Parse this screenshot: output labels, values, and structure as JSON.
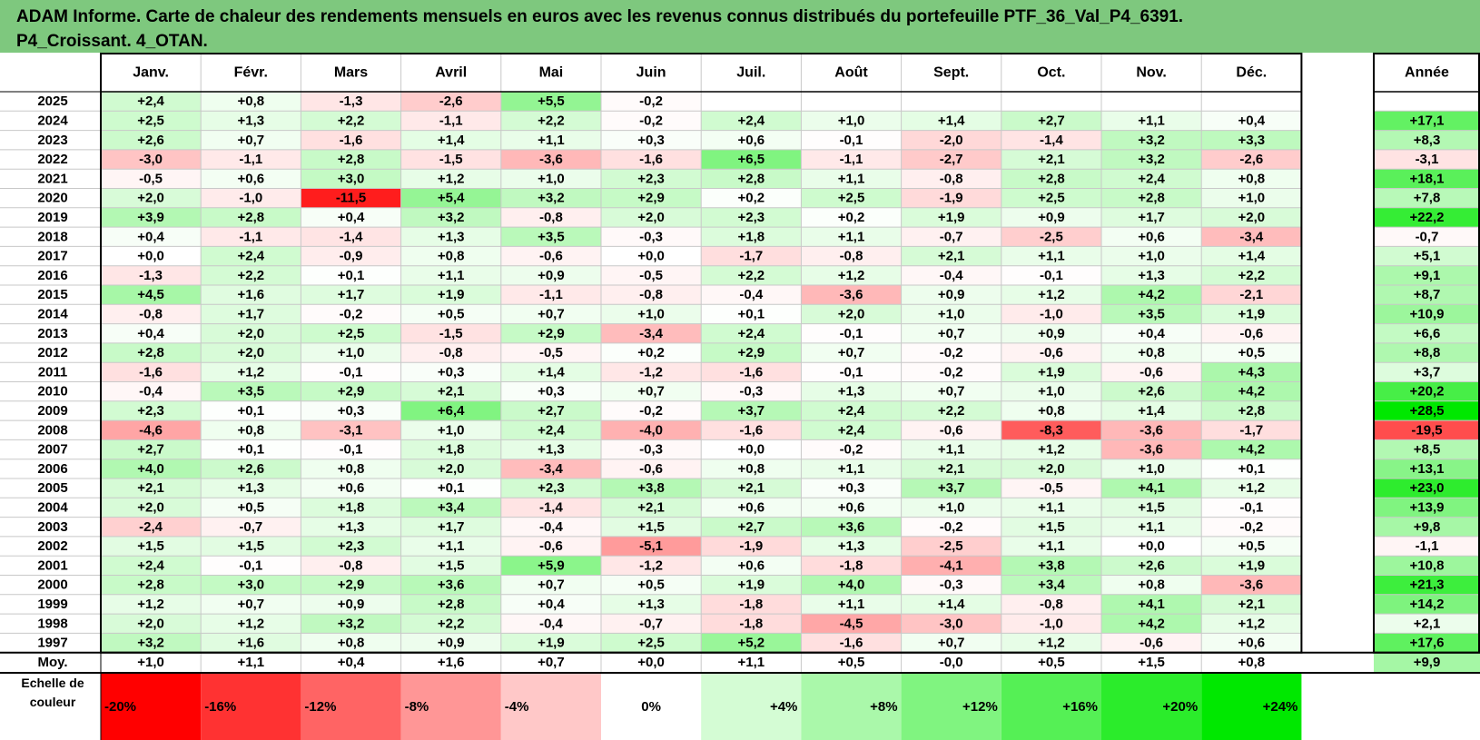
{
  "title_line1": "ADAM Informe. Carte de chaleur des rendements mensuels en euros avec les revenus connus distribués du portefeuille PTF_36_Val_P4_6391.",
  "title_line2": "P4_Croissant. 4_OTAN.",
  "chart_data": {
    "type": "heatmap",
    "columns": [
      "Janv.",
      "Févr.",
      "Mars",
      "Avril",
      "Mai",
      "Juin",
      "Juil.",
      "Août",
      "Sept.",
      "Oct.",
      "Nov.",
      "Déc."
    ],
    "year_column": "Année",
    "rows": [
      {
        "label": "2025",
        "months": [
          "+2,4",
          "+0,8",
          "-1,3",
          "-2,6",
          "+5,5",
          "-0,2",
          "",
          "",
          "",
          "",
          "",
          ""
        ],
        "year": ""
      },
      {
        "label": "2024",
        "months": [
          "+2,5",
          "+1,3",
          "+2,2",
          "-1,1",
          "+2,2",
          "-0,2",
          "+2,4",
          "+1,0",
          "+1,4",
          "+2,7",
          "+1,1",
          "+0,4"
        ],
        "year": "+17,1"
      },
      {
        "label": "2023",
        "months": [
          "+2,6",
          "+0,7",
          "-1,6",
          "+1,4",
          "+1,1",
          "+0,3",
          "+0,6",
          "-0,1",
          "-2,0",
          "-1,4",
          "+3,2",
          "+3,3"
        ],
        "year": "+8,3"
      },
      {
        "label": "2022",
        "months": [
          "-3,0",
          "-1,1",
          "+2,8",
          "-1,5",
          "-3,6",
          "-1,6",
          "+6,5",
          "-1,1",
          "-2,7",
          "+2,1",
          "+3,2",
          "-2,6"
        ],
        "year": "-3,1"
      },
      {
        "label": "2021",
        "months": [
          "-0,5",
          "+0,6",
          "+3,0",
          "+1,2",
          "+1,0",
          "+2,3",
          "+2,8",
          "+1,1",
          "-0,8",
          "+2,8",
          "+2,4",
          "+0,8"
        ],
        "year": "+18,1"
      },
      {
        "label": "2020",
        "months": [
          "+2,0",
          "-1,0",
          "-11,5",
          "+5,4",
          "+3,2",
          "+2,9",
          "+0,2",
          "+2,5",
          "-1,9",
          "+2,5",
          "+2,8",
          "+1,0"
        ],
        "year": "+7,8"
      },
      {
        "label": "2019",
        "months": [
          "+3,9",
          "+2,8",
          "+0,4",
          "+3,2",
          "-0,8",
          "+2,0",
          "+2,3",
          "+0,2",
          "+1,9",
          "+0,9",
          "+1,7",
          "+2,0"
        ],
        "year": "+22,2"
      },
      {
        "label": "2018",
        "months": [
          "+0,4",
          "-1,1",
          "-1,4",
          "+1,3",
          "+3,5",
          "-0,3",
          "+1,8",
          "+1,1",
          "-0,7",
          "-2,5",
          "+0,6",
          "-3,4"
        ],
        "year": "-0,7"
      },
      {
        "label": "2017",
        "months": [
          "+0,0",
          "+2,4",
          "-0,9",
          "+0,8",
          "-0,6",
          "+0,0",
          "-1,7",
          "-0,8",
          "+2,1",
          "+1,1",
          "+1,0",
          "+1,4"
        ],
        "year": "+5,1"
      },
      {
        "label": "2016",
        "months": [
          "-1,3",
          "+2,2",
          "+0,1",
          "+1,1",
          "+0,9",
          "-0,5",
          "+2,2",
          "+1,2",
          "-0,4",
          "-0,1",
          "+1,3",
          "+2,2"
        ],
        "year": "+9,1"
      },
      {
        "label": "2015",
        "months": [
          "+4,5",
          "+1,6",
          "+1,7",
          "+1,9",
          "-1,1",
          "-0,8",
          "-0,4",
          "-3,6",
          "+0,9",
          "+1,2",
          "+4,2",
          "-2,1"
        ],
        "year": "+8,7"
      },
      {
        "label": "2014",
        "months": [
          "-0,8",
          "+1,7",
          "-0,2",
          "+0,5",
          "+0,7",
          "+1,0",
          "+0,1",
          "+2,0",
          "+1,0",
          "-1,0",
          "+3,5",
          "+1,9"
        ],
        "year": "+10,9"
      },
      {
        "label": "2013",
        "months": [
          "+0,4",
          "+2,0",
          "+2,5",
          "-1,5",
          "+2,9",
          "-3,4",
          "+2,4",
          "-0,1",
          "+0,7",
          "+0,9",
          "+0,4",
          "-0,6"
        ],
        "year": "+6,6"
      },
      {
        "label": "2012",
        "months": [
          "+2,8",
          "+2,0",
          "+1,0",
          "-0,8",
          "-0,5",
          "+0,2",
          "+2,9",
          "+0,7",
          "-0,2",
          "-0,6",
          "+0,8",
          "+0,5"
        ],
        "year": "+8,8"
      },
      {
        "label": "2011",
        "months": [
          "-1,6",
          "+1,2",
          "-0,1",
          "+0,3",
          "+1,4",
          "-1,2",
          "-1,6",
          "-0,1",
          "-0,2",
          "+1,9",
          "-0,6",
          "+4,3"
        ],
        "year": "+3,7"
      },
      {
        "label": "2010",
        "months": [
          "-0,4",
          "+3,5",
          "+2,9",
          "+2,1",
          "+0,3",
          "+0,7",
          "-0,3",
          "+1,3",
          "+0,7",
          "+1,0",
          "+2,6",
          "+4,2"
        ],
        "year": "+20,2"
      },
      {
        "label": "2009",
        "months": [
          "+2,3",
          "+0,1",
          "+0,3",
          "+6,4",
          "+2,7",
          "-0,2",
          "+3,7",
          "+2,4",
          "+2,2",
          "+0,8",
          "+1,4",
          "+2,8"
        ],
        "year": "+28,5"
      },
      {
        "label": "2008",
        "months": [
          "-4,6",
          "+0,8",
          "-3,1",
          "+1,0",
          "+2,4",
          "-4,0",
          "-1,6",
          "+2,4",
          "-0,6",
          "-8,3",
          "-3,6",
          "-1,7"
        ],
        "year": "-19,5"
      },
      {
        "label": "2007",
        "months": [
          "+2,7",
          "+0,1",
          "-0,1",
          "+1,8",
          "+1,3",
          "-0,3",
          "+0,0",
          "-0,2",
          "+1,1",
          "+1,2",
          "-3,6",
          "+4,2"
        ],
        "year": "+8,5"
      },
      {
        "label": "2006",
        "months": [
          "+4,0",
          "+2,6",
          "+0,8",
          "+2,0",
          "-3,4",
          "-0,6",
          "+0,8",
          "+1,1",
          "+2,1",
          "+2,0",
          "+1,0",
          "+0,1"
        ],
        "year": "+13,1"
      },
      {
        "label": "2005",
        "months": [
          "+2,1",
          "+1,3",
          "+0,6",
          "+0,1",
          "+2,3",
          "+3,8",
          "+2,1",
          "+0,3",
          "+3,7",
          "-0,5",
          "+4,1",
          "+1,2"
        ],
        "year": "+23,0"
      },
      {
        "label": "2004",
        "months": [
          "+2,0",
          "+0,5",
          "+1,8",
          "+3,4",
          "-1,4",
          "+2,1",
          "+0,6",
          "+0,6",
          "+1,0",
          "+1,1",
          "+1,5",
          "-0,1"
        ],
        "year": "+13,9"
      },
      {
        "label": "2003",
        "months": [
          "-2,4",
          "-0,7",
          "+1,3",
          "+1,7",
          "-0,4",
          "+1,5",
          "+2,7",
          "+3,6",
          "-0,2",
          "+1,5",
          "+1,1",
          "-0,2"
        ],
        "year": "+9,8"
      },
      {
        "label": "2002",
        "months": [
          "+1,5",
          "+1,5",
          "+2,3",
          "+1,1",
          "-0,6",
          "-5,1",
          "-1,9",
          "+1,3",
          "-2,5",
          "+1,1",
          "+0,0",
          "+0,5"
        ],
        "year": "-1,1"
      },
      {
        "label": "2001",
        "months": [
          "+2,4",
          "-0,1",
          "-0,8",
          "+1,5",
          "+5,9",
          "-1,2",
          "+0,6",
          "-1,8",
          "-4,1",
          "+3,8",
          "+2,6",
          "+1,9"
        ],
        "year": "+10,8"
      },
      {
        "label": "2000",
        "months": [
          "+2,8",
          "+3,0",
          "+2,9",
          "+3,6",
          "+0,7",
          "+0,5",
          "+1,9",
          "+4,0",
          "-0,3",
          "+3,4",
          "+0,8",
          "-3,6"
        ],
        "year": "+21,3"
      },
      {
        "label": "1999",
        "months": [
          "+1,2",
          "+0,7",
          "+0,9",
          "+2,8",
          "+0,4",
          "+1,3",
          "-1,8",
          "+1,1",
          "+1,4",
          "-0,8",
          "+4,1",
          "+2,1"
        ],
        "year": "+14,2"
      },
      {
        "label": "1998",
        "months": [
          "+2,0",
          "+1,2",
          "+3,2",
          "+2,2",
          "-0,4",
          "-0,7",
          "-1,8",
          "-4,5",
          "-3,0",
          "-1,0",
          "+4,2",
          "+1,2"
        ],
        "year": "+2,1"
      },
      {
        "label": "1997",
        "months": [
          "+3,2",
          "+1,6",
          "+0,8",
          "+0,9",
          "+1,9",
          "+2,5",
          "+5,2",
          "-1,6",
          "+0,7",
          "+1,2",
          "-0,6",
          "+0,6"
        ],
        "year": "+17,6"
      }
    ],
    "average_row": {
      "label": "Moy.",
      "months": [
        "+1,0",
        "+1,1",
        "+0,4",
        "+1,6",
        "+0,7",
        "+0,0",
        "+1,1",
        "+0,5",
        "-0,0",
        "+0,5",
        "+1,5",
        "+0,8"
      ],
      "year": "+9,9"
    },
    "scale_label_line1": "Echelle de",
    "scale_label_line2": "couleur",
    "scale": [
      {
        "label": "-20%",
        "color": "#ff0000"
      },
      {
        "label": "-16%",
        "color": "#ff3232"
      },
      {
        "label": "-12%",
        "color": "#ff6464"
      },
      {
        "label": "-8%",
        "color": "#ff9696"
      },
      {
        "label": "-4%",
        "color": "#ffc8c8"
      },
      {
        "label": "0%",
        "color": "#ffffff"
      },
      {
        "label": "+4%",
        "color": "#d4fcd4"
      },
      {
        "label": "+8%",
        "color": "#aaf8aa"
      },
      {
        "label": "+12%",
        "color": "#80f480"
      },
      {
        "label": "+16%",
        "color": "#55f055"
      },
      {
        "label": "+20%",
        "color": "#2bec2b"
      },
      {
        "label": "+24%",
        "color": "#00e800"
      }
    ],
    "colors": {
      "negative": "#ff0000",
      "positive": "#00e800",
      "neutral": "#ffffff",
      "title_bg": "#7ec87e"
    }
  }
}
